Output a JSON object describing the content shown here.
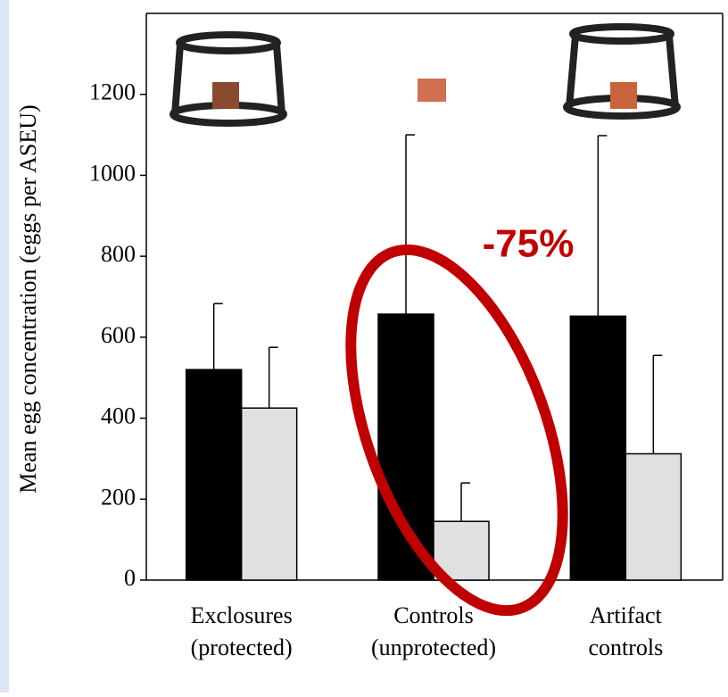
{
  "chart_data": {
    "type": "bar",
    "y_label": "Mean egg concentration (eggs per ASEU)",
    "annotation": "-75%",
    "categories": [
      [
        "Exclosures",
        "(protected)"
      ],
      [
        "Controls",
        "(unprotected)"
      ],
      [
        "Artifact",
        "controls"
      ]
    ],
    "series": [
      {
        "color": "#000000",
        "values": [
          520,
          657,
          652
        ],
        "errors": [
          163,
          443,
          446
        ]
      },
      {
        "color": "#e0e0e0",
        "values": [
          425,
          145,
          312
        ],
        "errors": [
          150,
          95,
          243
        ]
      }
    ],
    "ylim": [
      0,
      1400
    ],
    "yticks": [
      0,
      200,
      400,
      600,
      800,
      1000,
      1200
    ]
  }
}
